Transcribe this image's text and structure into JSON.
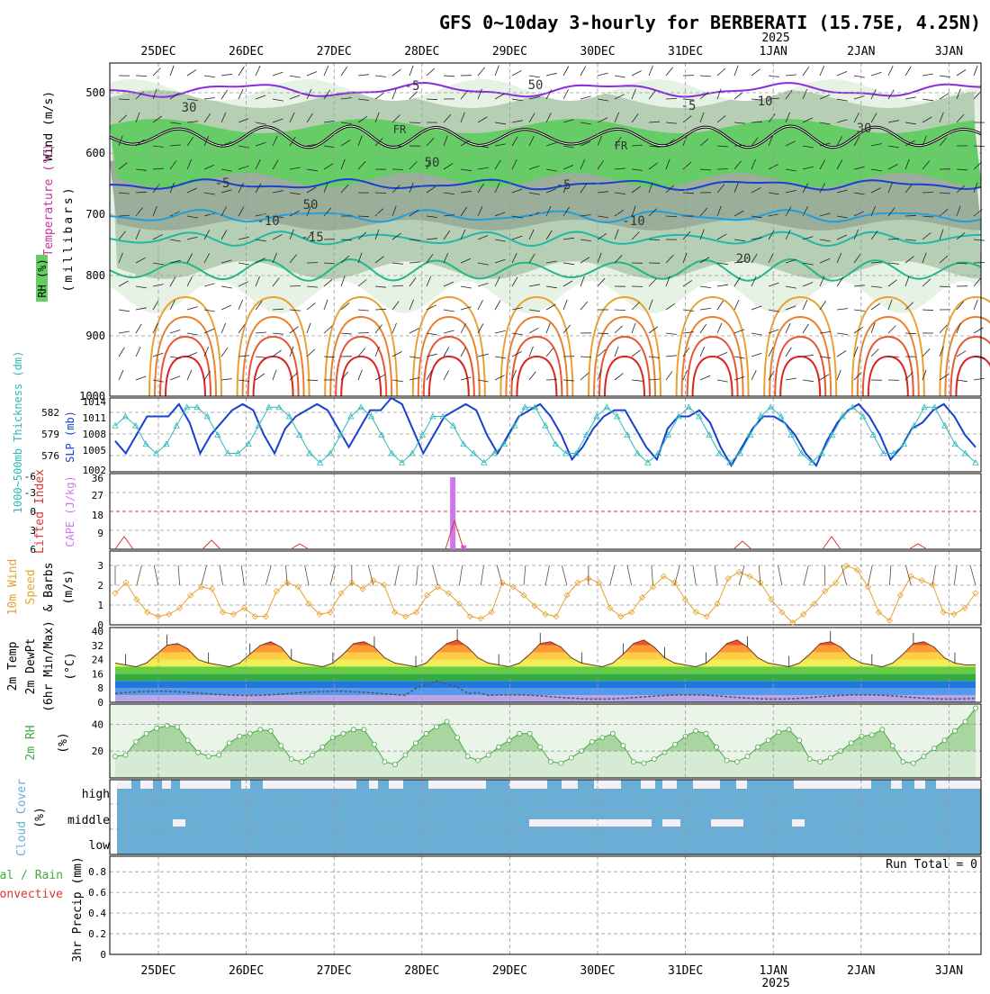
{
  "title": "GFS 0~10day 3-hourly for BERBERATI (15.75E, 4.25N)",
  "year_label": "2025",
  "date_labels": [
    "25DEC",
    "26DEC",
    "27DEC",
    "28DEC",
    "29DEC",
    "30DEC",
    "31DEC",
    "1JAN",
    "2JAN",
    "3JAN"
  ],
  "colors": {
    "rh_light": "#e6f2e4",
    "rh_mid": "#b6cfb4",
    "rh_dark": "#9aae9a",
    "rh_green": "#66cc66",
    "cloud_blue": "#6aaed6",
    "cloud_clear": "#f4f0f8",
    "slp": "#1a40d0",
    "thickness": "#30b8b8",
    "cape": "#cc77ee",
    "lifted": "#dd3333",
    "wind10": "#e8a030",
    "rh2m": "#44aa44"
  },
  "panels": {
    "upper": {
      "y_label_rh": "RH (%)",
      "y_label_temp": "Temperature (°C)",
      "y_label_wind": "Wind (m/s)",
      "y_label_mb": "(millibars)",
      "ticks": [
        "500",
        "600",
        "700",
        "800",
        "900",
        "1000"
      ],
      "contour_labels": [
        "-5",
        "-5",
        "FR",
        "FR",
        "-5",
        "-5",
        "-10",
        "-10",
        "-15",
        "20",
        "50",
        "30",
        "50",
        "50",
        "10",
        "30"
      ]
    },
    "slp": {
      "y_label_thick": "1000~500mb Thickness (dm)",
      "y_label_slp": "SLP (mb)",
      "left_ticks": [
        "582",
        "579",
        "576"
      ],
      "right_ticks": [
        "1014",
        "1011",
        "1008",
        "1005",
        "1002"
      ]
    },
    "cape": {
      "y_label_li": "Lifted Index",
      "y_label_cape": "CAPE (J/kg)",
      "left_ticks": [
        "-6",
        "-3",
        "0",
        "3",
        "6"
      ],
      "right_ticks": [
        "36",
        "27",
        "18",
        "9"
      ]
    },
    "wind10": {
      "y_label_1": "10m Wind",
      "y_label_2": "Speed",
      "y_label_3": "& Barbs",
      "y_unit": "(m/s)",
      "ticks": [
        "3",
        "2",
        "1",
        "0"
      ]
    },
    "temp2m": {
      "y_label_1": "2m Temp",
      "y_label_2": "2m DewPt",
      "y_label_3": "(6hr Min/Max)",
      "y_unit": "(°C)",
      "ticks": [
        "40",
        "32",
        "24",
        "16",
        "8",
        "0"
      ]
    },
    "rh2m": {
      "y_label": "2m RH",
      "y_unit": "(%)",
      "ticks": [
        "40",
        "20"
      ]
    },
    "cloud": {
      "y_label": "Cloud Cover",
      "y_unit": "(%)",
      "levels": [
        "high",
        "middle",
        "low"
      ]
    },
    "precip": {
      "y_label_1": "Total / Rain",
      "y_label_2": "Convective",
      "y_label_3": "3hr Precip (mm)",
      "ticks": [
        "0.8",
        "0.6",
        "0.4",
        "0.2",
        "0"
      ],
      "run_total": "Run Total = 0"
    }
  },
  "chart_data": [
    {
      "type": "line",
      "name": "SLP",
      "x_step_hours": 3,
      "ylim": [
        1002,
        1014
      ],
      "values": [
        1007,
        1005,
        1008,
        1011,
        1011,
        1011,
        1013,
        1010,
        1005,
        1008,
        1010,
        1012,
        1013,
        1012,
        1008,
        1005,
        1009,
        1011,
        1012,
        1013,
        1012,
        1009,
        1006,
        1009,
        1012,
        1012,
        1014,
        1013,
        1009,
        1005,
        1008,
        1011,
        1012,
        1013,
        1012,
        1008,
        1005,
        1008,
        1011,
        1012,
        1013,
        1011,
        1008,
        1004,
        1006,
        1009,
        1011,
        1012,
        1012,
        1009,
        1006,
        1004,
        1009,
        1011,
        1011,
        1012,
        1010,
        1006,
        1003,
        1006,
        1009,
        1011,
        1011,
        1010,
        1008,
        1005,
        1003,
        1007,
        1010,
        1012,
        1013,
        1011,
        1008,
        1004,
        1006,
        1009,
        1010,
        1012,
        1013,
        1011,
        1008,
        1006
      ]
    },
    {
      "type": "line",
      "name": "Thickness",
      "ylim": [
        575,
        583
      ],
      "values": [
        580,
        581,
        580,
        578,
        577,
        578,
        580,
        582,
        582,
        581,
        579,
        577,
        577,
        578,
        580,
        582,
        582,
        581,
        579,
        577,
        576,
        577,
        579,
        581,
        582,
        581,
        579,
        577,
        576,
        577,
        579,
        581,
        581,
        580,
        578,
        577,
        576,
        577,
        578,
        580,
        582,
        582,
        580,
        578,
        577,
        577,
        579,
        581,
        582,
        581,
        579,
        577,
        576,
        577,
        579,
        581,
        582,
        581,
        579,
        577,
        576,
        577,
        579,
        581,
        582,
        581,
        579,
        577,
        576,
        577,
        579,
        581,
        582,
        581,
        579,
        577,
        577,
        578,
        580,
        582,
        582,
        580,
        578,
        577,
        576
      ]
    },
    {
      "type": "bar",
      "name": "CAPE",
      "ylim": [
        0,
        36
      ],
      "values": [
        0,
        0,
        0,
        0,
        0,
        0,
        0,
        0,
        0,
        0,
        0,
        0,
        0,
        0,
        0,
        0,
        0,
        0,
        0,
        0,
        0,
        0,
        0,
        0,
        0,
        0,
        0,
        0,
        0,
        0,
        0,
        36,
        2,
        0,
        0,
        0,
        0,
        0,
        0,
        0,
        0,
        0,
        0,
        0,
        0,
        0,
        0,
        0,
        0,
        0,
        0,
        0,
        0,
        0,
        0,
        0,
        0,
        0,
        0,
        0,
        0,
        0,
        0,
        0,
        0,
        0,
        0,
        0,
        0,
        0,
        0,
        0,
        0,
        0,
        0,
        0,
        0,
        0,
        0,
        0
      ]
    },
    {
      "type": "line",
      "name": "Wind speed 10m",
      "ylim": [
        0,
        3.5
      ],
      "values": [
        1.5,
        2.0,
        1.2,
        0.6,
        0.4,
        0.5,
        0.8,
        1.4,
        1.8,
        1.7,
        0.6,
        0.5,
        0.8,
        0.4,
        0.4,
        1.6,
        2.0,
        1.8,
        1.0,
        0.5,
        0.6,
        1.5,
        2.0,
        1.7,
        2.1,
        1.9,
        0.6,
        0.4,
        0.6,
        1.4,
        1.8,
        1.5,
        1.0,
        0.4,
        0.3,
        0.6,
        2.0,
        1.8,
        1.4,
        0.9,
        0.5,
        0.4,
        1.4,
        2.0,
        2.2,
        2.0,
        0.8,
        0.4,
        0.6,
        1.3,
        1.8,
        2.3,
        2.0,
        1.2,
        0.6,
        0.4,
        1.0,
        2.2,
        2.5,
        2.3,
        2.0,
        1.2,
        0.6,
        0.1,
        0.5,
        1.0,
        1.6,
        2.0,
        2.8,
        2.6,
        1.8,
        0.6,
        0.2,
        1.4,
        2.3,
        2.1,
        1.9,
        0.6,
        0.5,
        0.8,
        1.5
      ]
    },
    {
      "type": "area",
      "name": "2m Temp",
      "ylim": [
        0,
        40
      ],
      "values": [
        22,
        21,
        20,
        22,
        27,
        32,
        33,
        30,
        24,
        22,
        21,
        20,
        22,
        27,
        32,
        34,
        31,
        24,
        22,
        21,
        20,
        22,
        27,
        33,
        34,
        31,
        25,
        22,
        21,
        20,
        22,
        28,
        33,
        35,
        31,
        25,
        22,
        21,
        20,
        22,
        27,
        33,
        34,
        31,
        25,
        22,
        21,
        20,
        22,
        27,
        33,
        35,
        31,
        25,
        22,
        21,
        20,
        22,
        27,
        33,
        35,
        31,
        25,
        22,
        21,
        20,
        22,
        27,
        33,
        34,
        31,
        25,
        22,
        21,
        20,
        22,
        27,
        33,
        34,
        31,
        25,
        22,
        21,
        21
      ]
    },
    {
      "type": "line",
      "name": "2m RH",
      "ylim": [
        0,
        55
      ],
      "values": [
        16,
        17,
        27,
        33,
        37,
        39,
        38,
        28,
        19,
        16,
        17,
        26,
        31,
        33,
        36,
        35,
        24,
        14,
        12,
        17,
        23,
        30,
        33,
        36,
        36,
        25,
        12,
        10,
        17,
        26,
        33,
        38,
        42,
        30,
        16,
        13,
        17,
        23,
        28,
        33,
        33,
        23,
        12,
        11,
        15,
        20,
        27,
        30,
        33,
        24,
        12,
        11,
        14,
        19,
        25,
        31,
        35,
        33,
        23,
        13,
        12,
        16,
        23,
        28,
        34,
        36,
        28,
        14,
        12,
        15,
        20,
        26,
        31,
        32,
        36,
        24,
        12,
        11,
        16,
        22,
        28,
        35,
        42,
        52
      ]
    }
  ]
}
